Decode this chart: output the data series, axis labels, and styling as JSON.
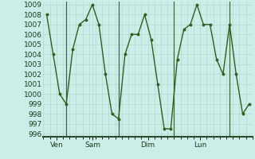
{
  "x_values": [
    0,
    1,
    2,
    3,
    4,
    5,
    6,
    7,
    8,
    9,
    10,
    11,
    12,
    13,
    14,
    15,
    16,
    17,
    18,
    19,
    20,
    21,
    22,
    23,
    24,
    25,
    26,
    27,
    28,
    29,
    30,
    31
  ],
  "y_values": [
    1008,
    1004,
    1000,
    999,
    1004.5,
    1007,
    1007.5,
    1009,
    1007,
    1002,
    998,
    997.5,
    1004,
    1006,
    1006,
    1008,
    1005.5,
    1001,
    996.5,
    996.5,
    1003.5,
    1006.5,
    1007,
    1009,
    1007,
    1007,
    1003.5,
    1002,
    1007,
    1002,
    998,
    999
  ],
  "xtick_positions": [
    1.5,
    7,
    15.5,
    23.5
  ],
  "xtick_labels": [
    "Ven",
    "Sam",
    "Dim",
    "Lun"
  ],
  "vline_positions": [
    3,
    11,
    19.5,
    28
  ],
  "ytick_min": 996,
  "ytick_max": 1009,
  "ytick_step": 1,
  "line_color": "#2d6020",
  "marker_color": "#2d6020",
  "bg_color": "#cceee8",
  "grid_color": "#aad4cc",
  "grid_major_color": "#88bbb0",
  "marker_size": 4,
  "line_width": 1.0
}
